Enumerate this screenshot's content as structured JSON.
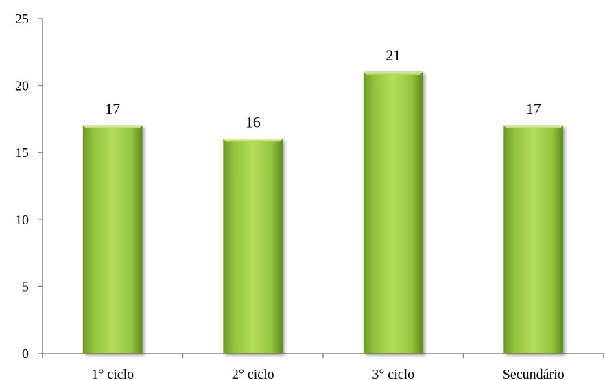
{
  "chart_data": {
    "type": "bar",
    "categories": [
      "1° ciclo",
      "2° ciclo",
      "3° ciclo",
      "Secundário"
    ],
    "values": [
      17,
      16,
      21,
      17
    ],
    "data_labels": [
      "17",
      "16",
      "21",
      "17"
    ],
    "title": "",
    "xlabel": "",
    "ylabel": "",
    "ylim": [
      0,
      25
    ],
    "yticks": [
      0,
      5,
      10,
      15,
      20,
      25
    ],
    "ytick_labels": [
      "0",
      "5",
      "10",
      "15",
      "20",
      "25"
    ],
    "grid": false,
    "legend": "none",
    "colors": {
      "bar_light": "#b4dd5c",
      "bar_mid": "#92c43c",
      "bar_dark": "#5f8a1f",
      "axis": "#868686"
    }
  }
}
